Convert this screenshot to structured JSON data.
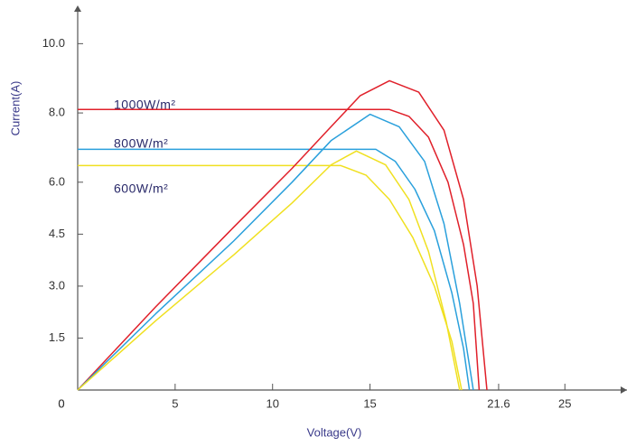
{
  "chart_data": {
    "type": "line",
    "x_label": "Voltage(V)",
    "y_label": "Current(A)",
    "xlim": [
      0,
      28
    ],
    "ylim": [
      0,
      11
    ],
    "xticks": [
      0,
      5,
      10,
      15,
      21.6,
      25
    ],
    "yticks": [
      0,
      1.5,
      {
        "value": 3,
        "label": "3.0"
      },
      4.5,
      {
        "value": 6,
        "label": "6.0"
      },
      {
        "value": 8,
        "label": "8.0"
      },
      {
        "value": 10,
        "label": "10.0"
      }
    ],
    "series": [
      {
        "name": "1000W/m²",
        "color": "#e0202a",
        "x": [
          0,
          16,
          17,
          18,
          19,
          19.8,
          20.3,
          20.6
        ],
        "values": [
          8.1,
          8.1,
          7.9,
          7.3,
          6.0,
          4.2,
          2.5,
          0
        ]
      },
      {
        "name": "800W/m²",
        "color": "#2aa0dc",
        "x": [
          0,
          15.3,
          16.3,
          17.3,
          18.3,
          19.2,
          19.8,
          20.1
        ],
        "values": [
          6.95,
          6.95,
          6.6,
          5.8,
          4.6,
          2.8,
          1.2,
          0
        ]
      },
      {
        "name": "600W/m²",
        "color": "#f0e020",
        "x": [
          0,
          13.5,
          14.8,
          16,
          17.2,
          18.3,
          19.2,
          19.7
        ],
        "values": [
          6.48,
          6.48,
          6.2,
          5.5,
          4.4,
          3.0,
          1.4,
          0
        ]
      },
      {
        "color": "#e0202a",
        "x": [
          0,
          4,
          8,
          11,
          13,
          14.5,
          16,
          17.5,
          18.8,
          19.8,
          20.5,
          21
        ],
        "values": [
          0,
          2.4,
          4.7,
          6.4,
          7.6,
          8.5,
          8.93,
          8.6,
          7.5,
          5.5,
          3,
          0
        ]
      },
      {
        "color": "#2aa0dc",
        "x": [
          0,
          4,
          8,
          11,
          13,
          15,
          16.5,
          17.8,
          18.8,
          19.6,
          20.3
        ],
        "values": [
          0,
          2.2,
          4.3,
          6.0,
          7.2,
          7.96,
          7.6,
          6.6,
          4.8,
          2.5,
          0
        ]
      },
      {
        "color": "#f0e020",
        "x": [
          0,
          4,
          8,
          11,
          13,
          14.3,
          15.8,
          17,
          18,
          18.9,
          19.6
        ],
        "values": [
          0,
          2.0,
          3.9,
          5.4,
          6.5,
          6.9,
          6.5,
          5.5,
          4.0,
          2.0,
          0
        ]
      }
    ]
  }
}
